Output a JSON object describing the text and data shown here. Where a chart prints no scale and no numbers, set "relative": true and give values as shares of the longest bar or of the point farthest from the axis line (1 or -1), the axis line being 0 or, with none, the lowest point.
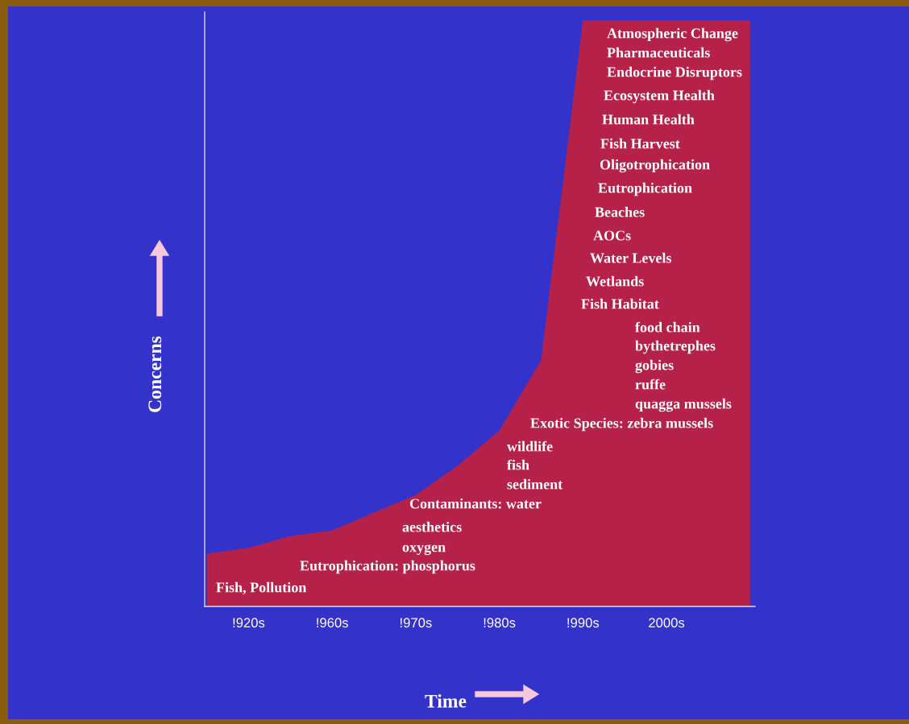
{
  "chart_data": {
    "type": "area",
    "relative": true,
    "tick_labels": "x",
    "xlabel": "Time",
    "ylabel": "Concerns",
    "categories": [
      null,
      "!920s",
      null,
      "!960s",
      null,
      "!970s",
      null,
      "!980s",
      null,
      "!990s",
      null,
      "2000s",
      null,
      null
    ],
    "series": [
      {
        "color": "#c41f3c",
        "values": [
          0.09,
          0.1,
          0.12,
          0.13,
          0.16,
          0.19,
          0.24,
          0.3,
          0.42,
          1,
          1,
          1,
          1,
          1
        ]
      }
    ],
    "annotations": [
      "Atmospheric Change",
      "Pharmaceuticals",
      "Endocrine Disruptors",
      "Ecosystem Health",
      "Human Health",
      "Fish Harvest",
      "Oligotrophication",
      "Eutrophication",
      "Beaches",
      "AOCs",
      "Water Levels",
      "Wetlands",
      "Fish Habitat",
      "food chain",
      "bythetrephes",
      "gobies",
      "ruffe",
      "quagga mussels",
      "Exotic Species: zebra mussels",
      "wildlife",
      "fish",
      "sediment",
      "Contaminants: water",
      "aesthetics",
      "oxygen",
      "Eutrophication: phosphorus",
      "Fish, Pollution"
    ]
  }
}
